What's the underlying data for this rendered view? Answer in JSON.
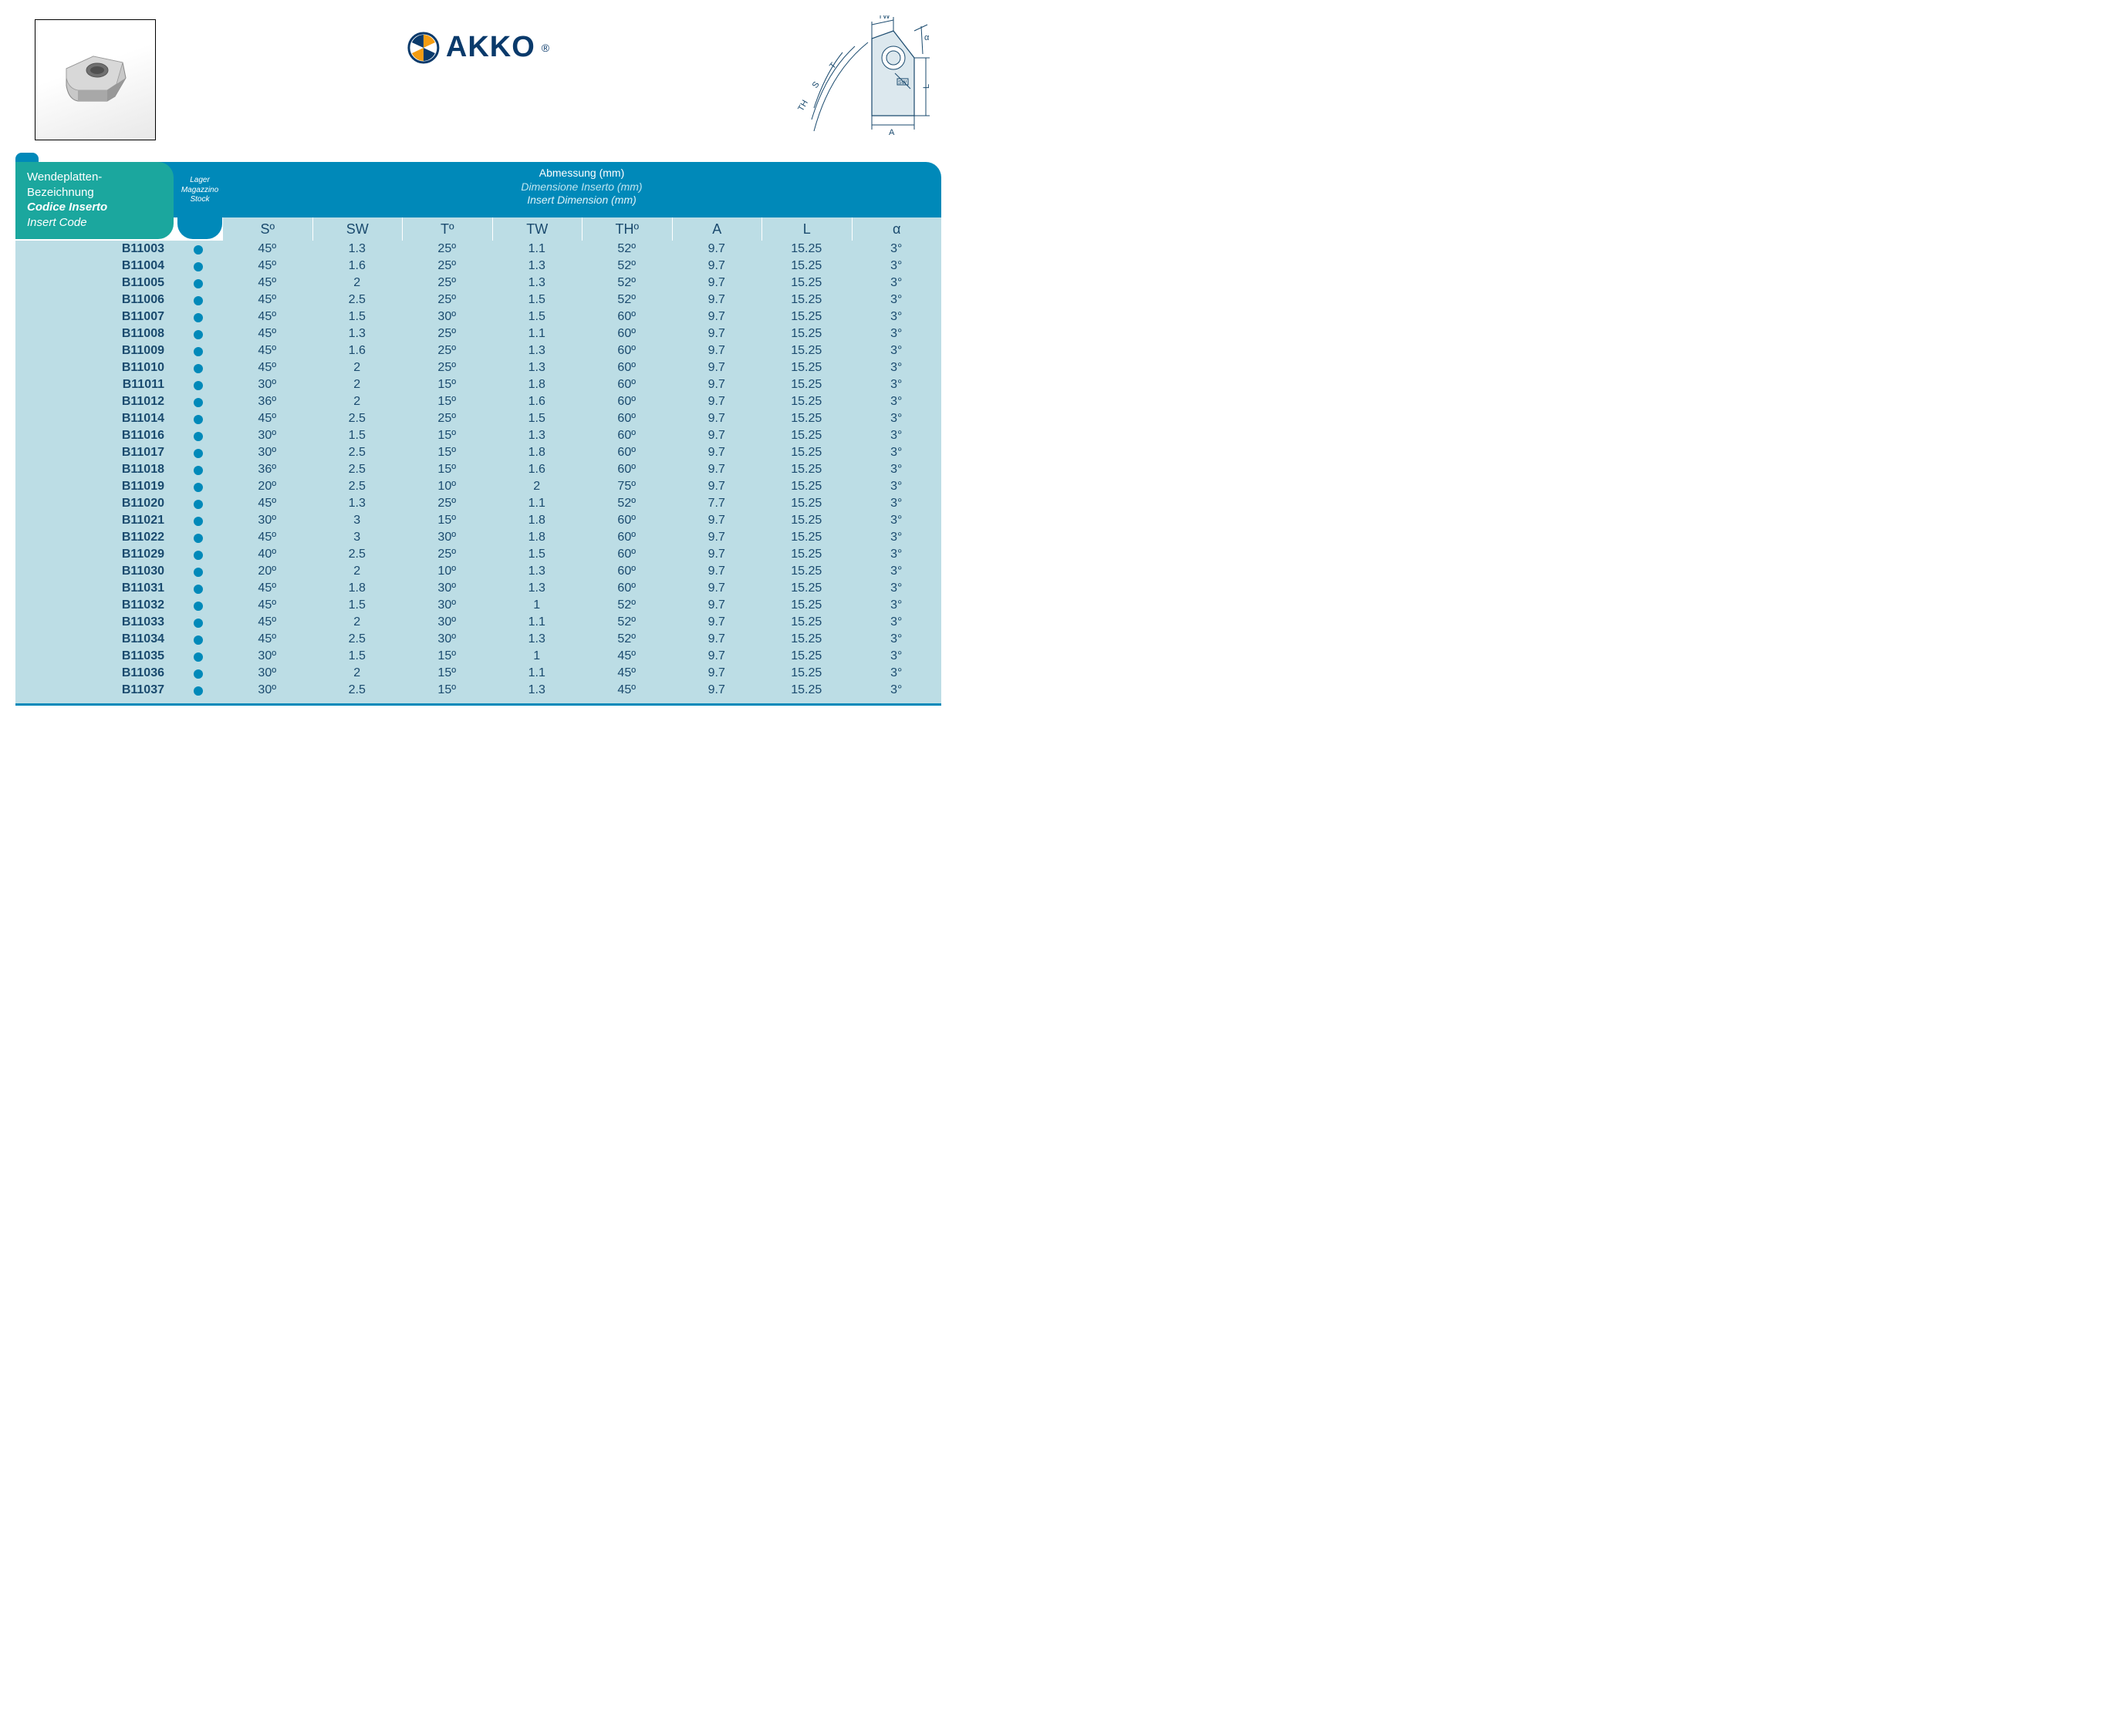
{
  "brand": {
    "name": "AKKO",
    "registered": "®"
  },
  "header": {
    "code_labels": {
      "de": "Wendeplatten-Bezeichnung",
      "it": "Codice Inserto",
      "en": "Insert Code"
    },
    "stock_labels": {
      "de": "Lager",
      "it": "Magazzino",
      "en": "Stock"
    },
    "dim_labels": {
      "de": "Abmessung (mm)",
      "it": "Dimensione Inserto (mm)",
      "en": "Insert Dimension (mm)"
    },
    "columns": [
      "Sº",
      "SW",
      "Tº",
      "TW",
      "THº",
      "A",
      "L",
      "α"
    ]
  },
  "diagram_labels": {
    "TW": "TW",
    "T": "T",
    "S": "S",
    "TH": "TH",
    "SW": "SW",
    "A": "A",
    "L": "L",
    "alpha": "α"
  },
  "colors": {
    "header_bg": "#0089b9",
    "code_bg": "#1ba79e",
    "body_bg": "#bcdde5",
    "text": "#1a4a6e",
    "dot": "#0089b9"
  },
  "rows": [
    {
      "code": "B11003",
      "stock": true,
      "S": "45º",
      "SW": "1.3",
      "T": "25º",
      "TW": "1.1",
      "TH": "52º",
      "A": "9.7",
      "L": "15.25",
      "alpha": "3°"
    },
    {
      "code": "B11004",
      "stock": true,
      "S": "45º",
      "SW": "1.6",
      "T": "25º",
      "TW": "1.3",
      "TH": "52º",
      "A": "9.7",
      "L": "15.25",
      "alpha": "3°"
    },
    {
      "code": "B11005",
      "stock": true,
      "S": "45º",
      "SW": "2",
      "T": "25º",
      "TW": "1.3",
      "TH": "52º",
      "A": "9.7",
      "L": "15.25",
      "alpha": "3°"
    },
    {
      "code": "B11006",
      "stock": true,
      "S": "45º",
      "SW": "2.5",
      "T": "25º",
      "TW": "1.5",
      "TH": "52º",
      "A": "9.7",
      "L": "15.25",
      "alpha": "3°"
    },
    {
      "code": "B11007",
      "stock": true,
      "S": "45º",
      "SW": "1.5",
      "T": "30º",
      "TW": "1.5",
      "TH": "60º",
      "A": "9.7",
      "L": "15.25",
      "alpha": "3°"
    },
    {
      "code": "B11008",
      "stock": true,
      "S": "45º",
      "SW": "1.3",
      "T": "25º",
      "TW": "1.1",
      "TH": "60º",
      "A": "9.7",
      "L": "15.25",
      "alpha": "3°"
    },
    {
      "code": "B11009",
      "stock": true,
      "S": "45º",
      "SW": "1.6",
      "T": "25º",
      "TW": "1.3",
      "TH": "60º",
      "A": "9.7",
      "L": "15.25",
      "alpha": "3°"
    },
    {
      "code": "B11010",
      "stock": true,
      "S": "45º",
      "SW": "2",
      "T": "25º",
      "TW": "1.3",
      "TH": "60º",
      "A": "9.7",
      "L": "15.25",
      "alpha": "3°"
    },
    {
      "code": "B11011",
      "stock": true,
      "S": "30º",
      "SW": "2",
      "T": "15º",
      "TW": "1.8",
      "TH": "60º",
      "A": "9.7",
      "L": "15.25",
      "alpha": "3°"
    },
    {
      "code": "B11012",
      "stock": true,
      "S": "36º",
      "SW": "2",
      "T": "15º",
      "TW": "1.6",
      "TH": "60º",
      "A": "9.7",
      "L": "15.25",
      "alpha": "3°"
    },
    {
      "code": "B11014",
      "stock": true,
      "S": "45º",
      "SW": "2.5",
      "T": "25º",
      "TW": "1.5",
      "TH": "60º",
      "A": "9.7",
      "L": "15.25",
      "alpha": "3°"
    },
    {
      "code": "B11016",
      "stock": true,
      "S": "30º",
      "SW": "1.5",
      "T": "15º",
      "TW": "1.3",
      "TH": "60º",
      "A": "9.7",
      "L": "15.25",
      "alpha": "3°"
    },
    {
      "code": "B11017",
      "stock": true,
      "S": "30º",
      "SW": "2.5",
      "T": "15º",
      "TW": "1.8",
      "TH": "60º",
      "A": "9.7",
      "L": "15.25",
      "alpha": "3°"
    },
    {
      "code": "B11018",
      "stock": true,
      "S": "36º",
      "SW": "2.5",
      "T": "15º",
      "TW": "1.6",
      "TH": "60º",
      "A": "9.7",
      "L": "15.25",
      "alpha": "3°"
    },
    {
      "code": "B11019",
      "stock": true,
      "S": "20º",
      "SW": "2.5",
      "T": "10º",
      "TW": "2",
      "TH": "75º",
      "A": "9.7",
      "L": "15.25",
      "alpha": "3°"
    },
    {
      "code": "B11020",
      "stock": true,
      "S": "45º",
      "SW": "1.3",
      "T": "25º",
      "TW": "1.1",
      "TH": "52º",
      "A": "7.7",
      "L": "15.25",
      "alpha": "3°"
    },
    {
      "code": "B11021",
      "stock": true,
      "S": "30º",
      "SW": "3",
      "T": "15º",
      "TW": "1.8",
      "TH": "60º",
      "A": "9.7",
      "L": "15.25",
      "alpha": "3°"
    },
    {
      "code": "B11022",
      "stock": true,
      "S": "45º",
      "SW": "3",
      "T": "30º",
      "TW": "1.8",
      "TH": "60º",
      "A": "9.7",
      "L": "15.25",
      "alpha": "3°"
    },
    {
      "code": "B11029",
      "stock": true,
      "S": "40º",
      "SW": "2.5",
      "T": "25º",
      "TW": "1.5",
      "TH": "60º",
      "A": "9.7",
      "L": "15.25",
      "alpha": "3°"
    },
    {
      "code": "B11030",
      "stock": true,
      "S": "20º",
      "SW": "2",
      "T": "10º",
      "TW": "1.3",
      "TH": "60º",
      "A": "9.7",
      "L": "15.25",
      "alpha": "3°"
    },
    {
      "code": "B11031",
      "stock": true,
      "S": "45º",
      "SW": "1.8",
      "T": "30º",
      "TW": "1.3",
      "TH": "60º",
      "A": "9.7",
      "L": "15.25",
      "alpha": "3°"
    },
    {
      "code": "B11032",
      "stock": true,
      "S": "45º",
      "SW": "1.5",
      "T": "30º",
      "TW": "1",
      "TH": "52º",
      "A": "9.7",
      "L": "15.25",
      "alpha": "3°"
    },
    {
      "code": "B11033",
      "stock": true,
      "S": "45º",
      "SW": "2",
      "T": "30º",
      "TW": "1.1",
      "TH": "52º",
      "A": "9.7",
      "L": "15.25",
      "alpha": "3°"
    },
    {
      "code": "B11034",
      "stock": true,
      "S": "45º",
      "SW": "2.5",
      "T": "30º",
      "TW": "1.3",
      "TH": "52º",
      "A": "9.7",
      "L": "15.25",
      "alpha": "3°"
    },
    {
      "code": "B11035",
      "stock": true,
      "S": "30º",
      "SW": "1.5",
      "T": "15º",
      "TW": "1",
      "TH": "45º",
      "A": "9.7",
      "L": "15.25",
      "alpha": "3°"
    },
    {
      "code": "B11036",
      "stock": true,
      "S": "30º",
      "SW": "2",
      "T": "15º",
      "TW": "1.1",
      "TH": "45º",
      "A": "9.7",
      "L": "15.25",
      "alpha": "3°"
    },
    {
      "code": "B11037",
      "stock": true,
      "S": "30º",
      "SW": "2.5",
      "T": "15º",
      "TW": "1.3",
      "TH": "45º",
      "A": "9.7",
      "L": "15.25",
      "alpha": "3°"
    }
  ]
}
